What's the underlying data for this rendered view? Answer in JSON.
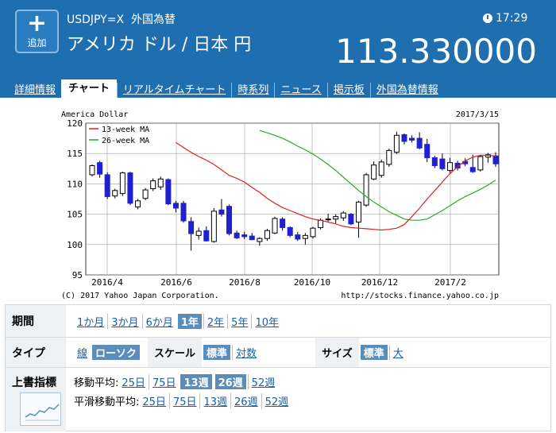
{
  "header": {
    "add_label": "追加",
    "symbol": "USDJPY=X",
    "category": "外国為替",
    "name": "アメリカ ドル / 日本 円",
    "time": "17:29",
    "price": "113.330000"
  },
  "tabs": [
    {
      "label": "詳細情報",
      "active": false
    },
    {
      "label": "チャート",
      "active": true
    },
    {
      "label": "リアルタイムチャート",
      "active": false
    },
    {
      "label": "時系列",
      "active": false
    },
    {
      "label": "ニュース",
      "active": false
    },
    {
      "label": "掲示板",
      "active": false
    },
    {
      "label": "外国為替情報",
      "active": false
    }
  ],
  "chart_data": {
    "type": "candlestick",
    "title": "America Dollar",
    "date": "2017/3/15",
    "legend": [
      "13-week MA",
      "26-week MA"
    ],
    "ylim": [
      95,
      120
    ],
    "y_ticks": [
      95,
      100,
      105,
      110,
      115,
      120
    ],
    "x_ticks": [
      "2016/4",
      "2016/6",
      "2016/8",
      "2016/10",
      "2016/12",
      "2017/2"
    ],
    "copyright": "(C) 2017 Yahoo Japan Corporation.",
    "source": "http://stocks.finance.yahoo.co.jp",
    "colors": {
      "up": "#ffffff",
      "down": "#2020d0",
      "ma13": "#e02020",
      "ma26": "#20b020",
      "grid": "#a0a0a0"
    },
    "candles": [
      {
        "o": 111.5,
        "h": 113.2,
        "l": 111.2,
        "c": 113.0
      },
      {
        "o": 113.5,
        "h": 113.8,
        "l": 111.0,
        "c": 111.6
      },
      {
        "o": 111.5,
        "h": 111.9,
        "l": 107.5,
        "c": 107.9
      },
      {
        "o": 108.0,
        "h": 109.2,
        "l": 107.6,
        "c": 108.9
      },
      {
        "o": 108.4,
        "h": 112.0,
        "l": 108.0,
        "c": 111.8
      },
      {
        "o": 111.8,
        "h": 112.0,
        "l": 106.5,
        "c": 106.8
      },
      {
        "o": 106.2,
        "h": 107.5,
        "l": 105.8,
        "c": 107.2
      },
      {
        "o": 107.6,
        "h": 109.3,
        "l": 107.3,
        "c": 109.0
      },
      {
        "o": 109.2,
        "h": 110.9,
        "l": 108.8,
        "c": 110.5
      },
      {
        "o": 109.5,
        "h": 111.2,
        "l": 109.0,
        "c": 110.8
      },
      {
        "o": 110.7,
        "h": 110.9,
        "l": 106.5,
        "c": 106.7
      },
      {
        "o": 106.8,
        "h": 107.2,
        "l": 105.3,
        "c": 106.0
      },
      {
        "o": 106.8,
        "h": 107.2,
        "l": 103.6,
        "c": 103.9
      },
      {
        "o": 103.8,
        "h": 104.5,
        "l": 99.0,
        "c": 101.8
      },
      {
        "o": 101.5,
        "h": 102.8,
        "l": 100.8,
        "c": 102.2
      },
      {
        "o": 102.3,
        "h": 103.0,
        "l": 100.5,
        "c": 100.6
      },
      {
        "o": 100.5,
        "h": 106.0,
        "l": 100.3,
        "c": 105.5
      },
      {
        "o": 105.7,
        "h": 107.5,
        "l": 104.6,
        "c": 105.0
      },
      {
        "o": 106.3,
        "h": 106.6,
        "l": 101.5,
        "c": 101.8
      },
      {
        "o": 101.9,
        "h": 102.3,
        "l": 100.9,
        "c": 101.1
      },
      {
        "o": 101.6,
        "h": 102.1,
        "l": 100.9,
        "c": 101.3
      },
      {
        "o": 101.4,
        "h": 101.9,
        "l": 100.7,
        "c": 100.8
      },
      {
        "o": 100.5,
        "h": 101.2,
        "l": 99.8,
        "c": 101.0
      },
      {
        "o": 101.0,
        "h": 102.6,
        "l": 100.6,
        "c": 102.3
      },
      {
        "o": 101.9,
        "h": 104.6,
        "l": 101.7,
        "c": 104.3
      },
      {
        "o": 104.2,
        "h": 104.5,
        "l": 102.3,
        "c": 102.8
      },
      {
        "o": 102.8,
        "h": 103.0,
        "l": 101.2,
        "c": 101.5
      },
      {
        "o": 101.6,
        "h": 102.1,
        "l": 100.6,
        "c": 100.9
      },
      {
        "o": 101.0,
        "h": 101.9,
        "l": 100.0,
        "c": 101.5
      },
      {
        "o": 101.3,
        "h": 102.9,
        "l": 101.0,
        "c": 102.7
      },
      {
        "o": 102.8,
        "h": 104.3,
        "l": 102.5,
        "c": 104.0
      },
      {
        "o": 104.1,
        "h": 105.1,
        "l": 103.8,
        "c": 104.2
      },
      {
        "o": 104.2,
        "h": 105.0,
        "l": 103.5,
        "c": 104.6
      },
      {
        "o": 104.4,
        "h": 105.5,
        "l": 103.9,
        "c": 105.2
      },
      {
        "o": 105.0,
        "h": 105.2,
        "l": 103.2,
        "c": 103.4
      },
      {
        "o": 103.7,
        "h": 107.2,
        "l": 101.1,
        "c": 107.0
      },
      {
        "o": 106.5,
        "h": 111.8,
        "l": 106.2,
        "c": 111.5
      },
      {
        "o": 110.8,
        "h": 113.7,
        "l": 110.6,
        "c": 113.1
      },
      {
        "o": 111.4,
        "h": 114.0,
        "l": 111.0,
        "c": 113.6
      },
      {
        "o": 113.2,
        "h": 115.8,
        "l": 112.8,
        "c": 115.5
      },
      {
        "o": 115.2,
        "h": 118.6,
        "l": 114.9,
        "c": 118.0
      },
      {
        "o": 118.1,
        "h": 118.3,
        "l": 116.5,
        "c": 117.0
      },
      {
        "o": 117.5,
        "h": 118.0,
        "l": 116.8,
        "c": 117.2
      },
      {
        "o": 117.5,
        "h": 118.5,
        "l": 115.7,
        "c": 115.9
      },
      {
        "o": 116.5,
        "h": 117.4,
        "l": 113.6,
        "c": 114.3
      },
      {
        "o": 114.3,
        "h": 114.6,
        "l": 112.6,
        "c": 113.0
      },
      {
        "o": 114.1,
        "h": 115.0,
        "l": 112.2,
        "c": 112.5
      },
      {
        "o": 112.2,
        "h": 114.3,
        "l": 111.8,
        "c": 113.5
      },
      {
        "o": 113.4,
        "h": 113.8,
        "l": 112.2,
        "c": 112.6
      },
      {
        "o": 113.7,
        "h": 114.2,
        "l": 112.9,
        "c": 113.3
      },
      {
        "o": 112.7,
        "h": 114.8,
        "l": 111.8,
        "c": 112.0
      },
      {
        "o": 112.3,
        "h": 114.8,
        "l": 112.0,
        "c": 114.5
      },
      {
        "o": 114.4,
        "h": 115.1,
        "l": 113.5,
        "c": 114.8
      },
      {
        "o": 114.6,
        "h": 115.2,
        "l": 112.8,
        "c": 113.3
      }
    ],
    "ma13": [
      116.8,
      116.0,
      115.2,
      114.5,
      113.9,
      113.2,
      112.3,
      111.4,
      110.9,
      110.3,
      109.4,
      108.6,
      107.6,
      106.8,
      106.1,
      105.6,
      105.1,
      104.6,
      104.2,
      104.0,
      103.7,
      103.4,
      103.0,
      102.8,
      102.7,
      102.6,
      102.5,
      102.4,
      102.5,
      102.7,
      103.3,
      104.6,
      106.0,
      107.5,
      108.9,
      110.3,
      111.7,
      112.8,
      113.8,
      114.4,
      114.7,
      114.7,
      114.6
    ],
    "ma26": [
      118.8,
      118.4,
      118.0,
      117.5,
      116.9,
      116.2,
      115.6,
      114.9,
      114.1,
      113.2,
      112.2,
      111.1,
      110.0,
      108.9,
      107.9,
      107.0,
      106.2,
      105.4,
      104.8,
      104.2,
      104.0,
      104.0,
      104.2,
      104.9,
      105.6,
      106.4,
      107.2,
      107.9,
      108.5,
      109.1,
      109.8,
      110.6
    ]
  },
  "controls": {
    "period": {
      "label": "期間",
      "options": [
        "1か月",
        "3か月",
        "6か月",
        "1年",
        "2年",
        "5年",
        "10年"
      ],
      "selected": "1年"
    },
    "type": {
      "label": "タイプ",
      "options": [
        "線",
        "ローソク"
      ],
      "selected": "ローソク"
    },
    "scale": {
      "label": "スケール",
      "options": [
        "標準",
        "対数"
      ],
      "selected": "標準"
    },
    "size": {
      "label": "サイズ",
      "options": [
        "標準",
        "大"
      ],
      "selected": "標準"
    },
    "overlay": {
      "label": "上書指標",
      "ma_label": "移動平均:",
      "ma_options": [
        "25日",
        "75日",
        "13週",
        "26週",
        "52週"
      ],
      "ma_selected": [
        "13週",
        "26週"
      ],
      "sma_label": "平滑移動平均:",
      "sma_options": [
        "25日",
        "75日",
        "13週",
        "26週",
        "52週"
      ]
    }
  }
}
